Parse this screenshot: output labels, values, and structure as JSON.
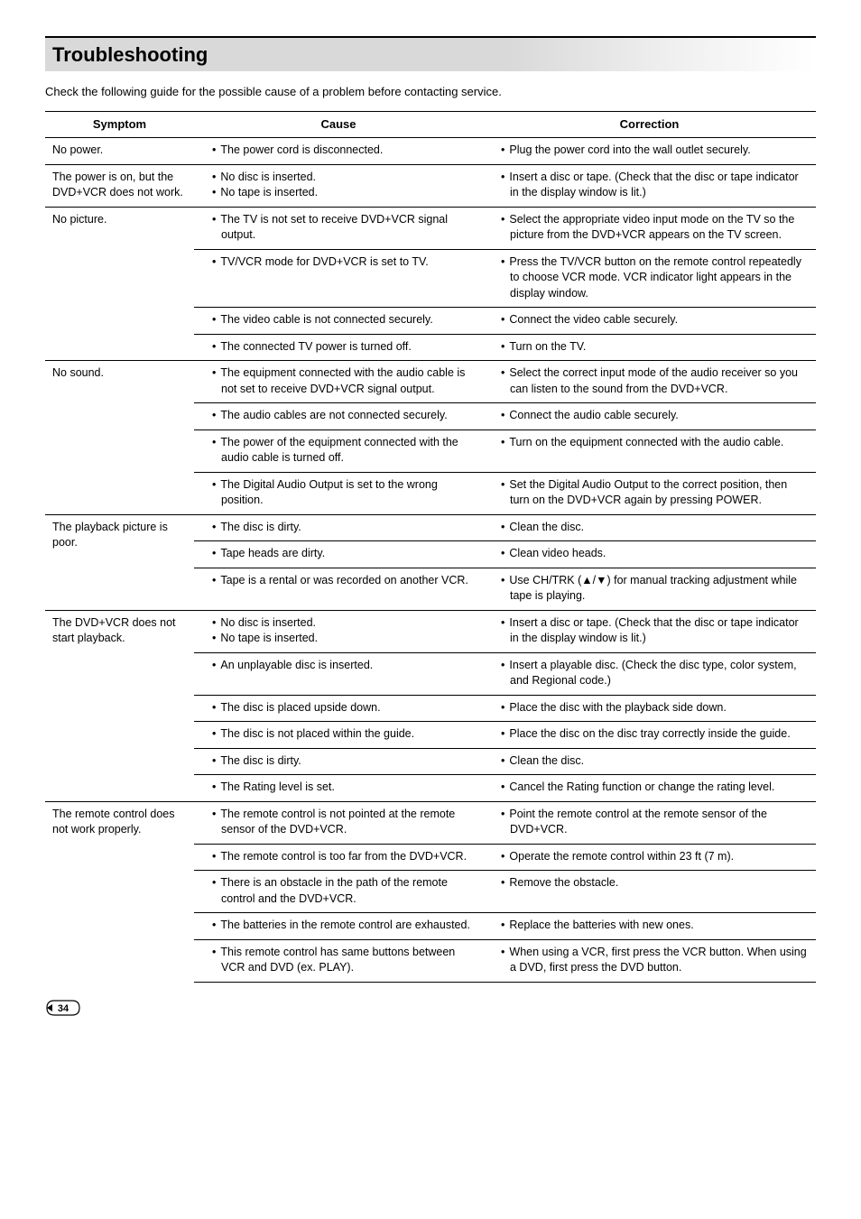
{
  "page": {
    "title": "Troubleshooting",
    "intro": "Check the following guide for the possible cause of a problem before contacting service.",
    "page_number": "34",
    "columns": {
      "symptom": "Symptom",
      "cause": "Cause",
      "correction": "Correction"
    },
    "rows": [
      {
        "symptom": "No power.",
        "items": [
          {
            "cause": [
              "The power cord is disconnected."
            ],
            "correction": [
              "Plug the power cord into the wall outlet securely."
            ]
          }
        ]
      },
      {
        "symptom": "The power is on, but the DVD+VCR does not work.",
        "items": [
          {
            "cause": [
              "No disc is inserted.",
              "No tape is inserted."
            ],
            "correction": [
              "Insert a disc or tape. (Check that the disc or tape indicator in the display window is lit.)"
            ]
          }
        ]
      },
      {
        "symptom": "No picture.",
        "items": [
          {
            "cause": [
              "The TV is not set to receive DVD+VCR signal output."
            ],
            "correction": [
              "Select the appropriate video input mode on the TV so the picture from the DVD+VCR appears on the TV screen."
            ]
          },
          {
            "cause": [
              "TV/VCR mode for DVD+VCR is set to TV."
            ],
            "correction": [
              "Press the TV/VCR button on the remote control repeatedly to choose VCR mode. VCR indicator light appears in the display window."
            ]
          },
          {
            "cause": [
              "The video cable is not connected securely."
            ],
            "correction": [
              "Connect the video cable securely."
            ]
          },
          {
            "cause": [
              "The connected TV power is turned off."
            ],
            "correction": [
              "Turn on the TV."
            ]
          }
        ]
      },
      {
        "symptom": "No sound.",
        "items": [
          {
            "cause": [
              "The equipment connected with the audio cable is not set to receive DVD+VCR signal output."
            ],
            "correction": [
              "Select the correct input mode of the audio receiver so you can listen to the sound from the DVD+VCR."
            ]
          },
          {
            "cause": [
              "The audio cables are not connected securely."
            ],
            "correction": [
              "Connect the audio cable securely."
            ]
          },
          {
            "cause": [
              "The power of the equipment connected with the audio cable is turned off."
            ],
            "correction": [
              "Turn on the equipment connected with the audio cable."
            ]
          },
          {
            "cause": [
              "The Digital Audio Output is set to the wrong position."
            ],
            "correction": [
              "Set the Digital Audio Output to the correct position, then turn on the DVD+VCR again by pressing POWER."
            ]
          }
        ]
      },
      {
        "symptom": "The playback picture is poor.",
        "items": [
          {
            "cause": [
              "The disc is dirty."
            ],
            "correction": [
              "Clean the disc."
            ]
          },
          {
            "cause": [
              "Tape heads are dirty."
            ],
            "correction": [
              "Clean video heads."
            ]
          },
          {
            "cause": [
              "Tape is a rental or was recorded on another VCR."
            ],
            "correction": [
              "Use CH/TRK (▲/▼) for manual tracking adjustment while tape is playing."
            ]
          }
        ]
      },
      {
        "symptom": "The DVD+VCR does not start playback.",
        "items": [
          {
            "cause": [
              "No disc is inserted.",
              "No tape is inserted."
            ],
            "correction": [
              "Insert a disc or tape. (Check that the disc or tape indicator in the display window is lit.)"
            ]
          },
          {
            "cause": [
              "An unplayable disc is inserted."
            ],
            "correction": [
              "Insert a playable disc. (Check the disc type, color system, and Regional code.)"
            ]
          },
          {
            "cause": [
              "The disc is placed upside down."
            ],
            "correction": [
              "Place the disc with the playback side down."
            ]
          },
          {
            "cause": [
              "The disc is not placed within the guide."
            ],
            "correction": [
              "Place the disc on the disc tray correctly inside the guide."
            ]
          },
          {
            "cause": [
              "The disc is dirty."
            ],
            "correction": [
              "Clean the disc."
            ]
          },
          {
            "cause": [
              "The Rating level is set."
            ],
            "correction": [
              "Cancel the Rating function or change the rating level."
            ]
          }
        ]
      },
      {
        "symptom": "The remote control does not work properly.",
        "items": [
          {
            "cause": [
              "The remote control is not pointed at the remote sensor of the DVD+VCR."
            ],
            "correction": [
              "Point the remote control at the remote sensor of the DVD+VCR."
            ]
          },
          {
            "cause": [
              "The remote control is too far from the DVD+VCR."
            ],
            "correction": [
              "Operate the remote control within 23 ft (7 m)."
            ]
          },
          {
            "cause": [
              "There is an obstacle in the path of the remote control and the DVD+VCR."
            ],
            "correction": [
              "Remove the obstacle."
            ]
          },
          {
            "cause": [
              "The batteries in the remote control are exhausted."
            ],
            "correction": [
              "Replace the batteries with new ones."
            ]
          },
          {
            "cause": [
              "This remote control has same buttons between VCR and DVD (ex. PLAY)."
            ],
            "correction": [
              "When using a VCR, first press the VCR button. When using a DVD, first press the DVD button."
            ]
          }
        ]
      }
    ]
  }
}
